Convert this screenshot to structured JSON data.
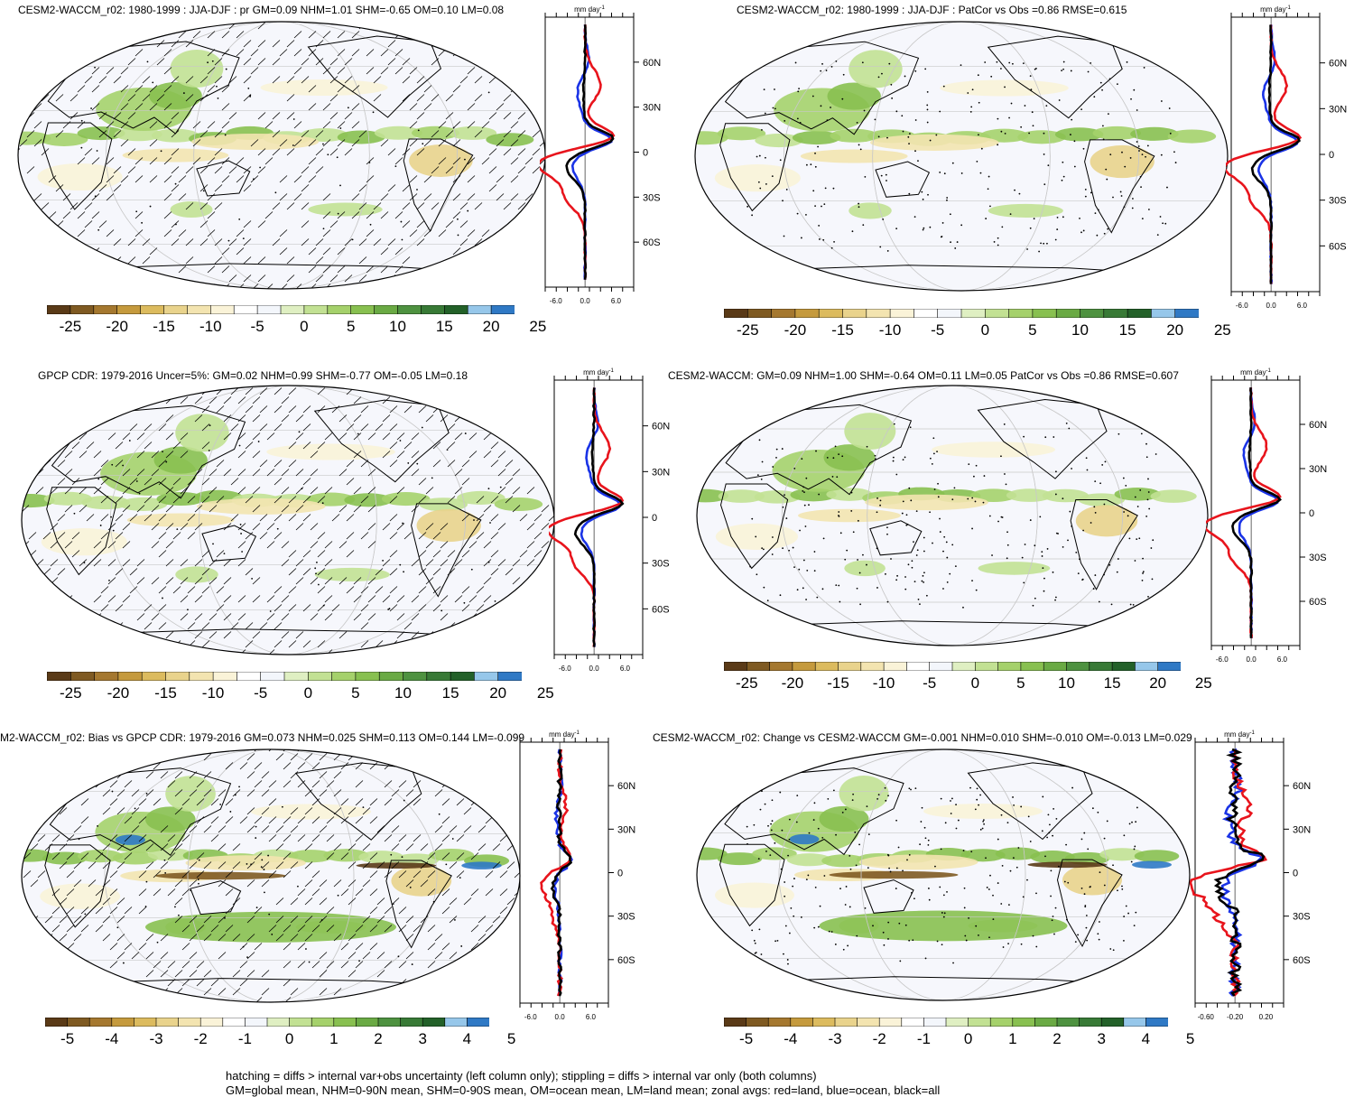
{
  "panels": [
    {
      "id": "p1",
      "title": "CESM2-WACCM_r02: 1980-1999 : JJA-DJF : pr GM=0.09 NHM=1.01 SHM=-0.65 OM=0.10 LM=0.08",
      "units_label": "mm day",
      "units_exp": "-1",
      "colorbar": {
        "labels": [
          "-25",
          "-20",
          "-15",
          "-10",
          "-5",
          "0",
          "5",
          "10",
          "15",
          "20",
          "25"
        ]
      },
      "zonal": {
        "lat_ticks": [
          "60N",
          "30N",
          "0",
          "30S",
          "60S"
        ],
        "x_ticks": [
          "-6.0",
          "0.0",
          "6.0"
        ]
      },
      "hatching": true
    },
    {
      "id": "p2",
      "title": "CESM2-WACCM_r02: 1980-1999 : JJA-DJF : PatCor vs Obs =0.86 RMSE=0.615",
      "units_label": "mm day",
      "units_exp": "-1",
      "colorbar": {
        "labels": [
          "-25",
          "-20",
          "-15",
          "-10",
          "-5",
          "0",
          "5",
          "10",
          "15",
          "20",
          "25"
        ]
      },
      "zonal": {
        "lat_ticks": [
          "60N",
          "30N",
          "0",
          "30S",
          "60S"
        ],
        "x_ticks": [
          "-6.0",
          "0.0",
          "6.0"
        ]
      },
      "hatching": false
    },
    {
      "id": "p3",
      "title": "GPCP CDR: 1979-2016 Uncer=5%: GM=0.02 NHM=0.99 SHM=-0.77 OM=-0.05 LM=0.18",
      "units_label": "mm day",
      "units_exp": "-1",
      "colorbar": {
        "labels": [
          "-25",
          "-20",
          "-15",
          "-10",
          "-5",
          "0",
          "5",
          "10",
          "15",
          "20",
          "25"
        ]
      },
      "zonal": {
        "lat_ticks": [
          "60N",
          "30N",
          "0",
          "30S",
          "60S"
        ],
        "x_ticks": [
          "-6.0",
          "0.0",
          "6.0"
        ]
      },
      "hatching": true
    },
    {
      "id": "p4",
      "title": "CESM2-WACCM: GM=0.09 NHM=1.00 SHM=-0.64 OM=0.11 LM=0.05 PatCor vs Obs =0.86 RMSE=0.607",
      "units_label": "mm day",
      "units_exp": "-1",
      "colorbar": {
        "labels": [
          "-25",
          "-20",
          "-15",
          "-10",
          "-5",
          "0",
          "5",
          "10",
          "15",
          "20",
          "25"
        ]
      },
      "zonal": {
        "lat_ticks": [
          "60N",
          "30N",
          "0",
          "30S",
          "60S"
        ],
        "x_ticks": [
          "-6.0",
          "0.0",
          "6.0"
        ]
      },
      "hatching": false
    },
    {
      "id": "p5",
      "title": "M2-WACCM_r02: Bias vs GPCP CDR: 1979-2016 GM=0.073 NHM=0.025 SHM=0.113 OM=0.144 LM=-0.099",
      "units_label": "mm day",
      "units_exp": "-1",
      "colorbar": {
        "labels": [
          "-5",
          "-4",
          "-3",
          "-2",
          "-1",
          "0",
          "1",
          "2",
          "3",
          "4",
          "5"
        ]
      },
      "zonal": {
        "lat_ticks": [
          "60N",
          "30N",
          "0",
          "30S",
          "60S"
        ],
        "x_ticks": [
          "-6.0",
          "0.0",
          "6.0"
        ]
      },
      "hatching": true
    },
    {
      "id": "p6",
      "title": "CESM2-WACCM_r02: Change vs CESM2-WACCM GM=-0.001 NHM=0.010 SHM=-0.010 OM=-0.013 LM=0.029",
      "units_label": "mm day",
      "units_exp": "-1",
      "colorbar": {
        "labels": [
          "-5",
          "-4",
          "-3",
          "-2",
          "-1",
          "0",
          "1",
          "2",
          "3",
          "4",
          "5"
        ]
      },
      "zonal": {
        "lat_ticks": [
          "60N",
          "30N",
          "0",
          "30S",
          "60S"
        ],
        "x_ticks": [
          "-0.60",
          "-0.20",
          "0.20"
        ]
      },
      "hatching": false
    }
  ],
  "colorbar_colors": [
    "#5a3a17",
    "#7f5a22",
    "#a5782f",
    "#c59a3d",
    "#dcbb5e",
    "#e9d38c",
    "#f3e4b0",
    "#faf3d8",
    "#ffffff",
    "#f3f6fb",
    "#dfefc2",
    "#c2e193",
    "#a5d16b",
    "#88c050",
    "#6aaa44",
    "#4e9240",
    "#387a36",
    "#236129",
    "#96c7ea",
    "#2f79c5"
  ],
  "series_colors": {
    "land": "#e8141c",
    "ocean": "#1a33e6",
    "all": "#000000"
  },
  "footnote": [
    "hatching = diffs > internal var+obs uncertainty (left column only); stippling = diffs > internal var only (both columns)",
    "GM=global mean, NHM=0-90N mean, SHM=0-90S mean, OM=ocean mean, LM=land mean; zonal avgs: red=land, blue=ocean, black=all"
  ]
}
